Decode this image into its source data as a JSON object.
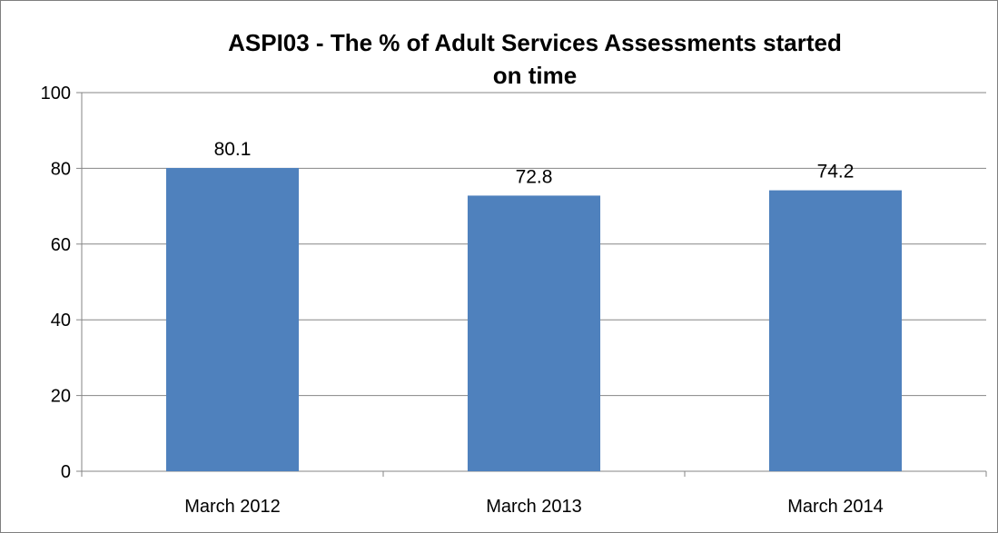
{
  "chart_data": {
    "type": "bar",
    "title": "ASPI03 - The % of Adult Services Assessments started on time",
    "title_lines": [
      "ASPI03 - The % of Adult Services Assessments started",
      "on time"
    ],
    "categories": [
      "March 2012",
      "March 2013",
      "March 2014"
    ],
    "values": [
      80.1,
      72.8,
      74.2
    ],
    "data_labels": [
      "80.1",
      "72.8",
      "74.2"
    ],
    "ylim": [
      0,
      100
    ],
    "yticks": [
      0,
      20,
      40,
      60,
      80,
      100
    ],
    "xlabel": "",
    "ylabel": "",
    "grid": true,
    "legend": "none",
    "colors": {
      "bar": "#4f81bd",
      "gridline": "#868686",
      "axis": "#868686"
    }
  }
}
